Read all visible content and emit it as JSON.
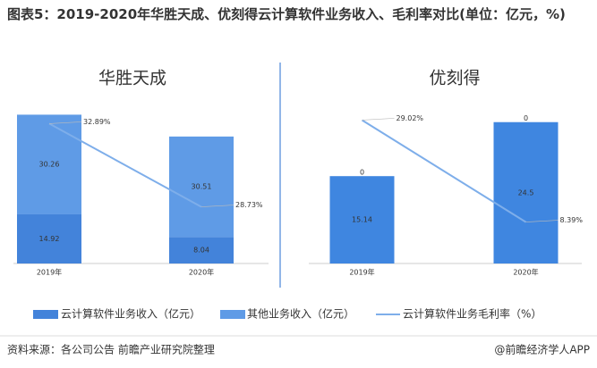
{
  "title": "图表5：2019-2020年华胜天成、优刻得云计算软件业务收入、毛利率对比(单位：亿元，%)",
  "source": "资料来源：各公司公告 前瞻产业研究院整理",
  "brand": "@前瞻经济学人APP",
  "chart_data": [
    {
      "type": "bar",
      "title": "华胜天成",
      "stacked": true,
      "categories": [
        "2019年",
        "2020年"
      ],
      "series": [
        {
          "name": "云计算软件业务收入（亿元）",
          "color": "#4383da",
          "values": [
            14.92,
            8.04
          ]
        },
        {
          "name": "其他业务收入（亿元）",
          "color": "#5f9be6",
          "values": [
            30.26,
            30.51
          ]
        },
        {
          "name": "云计算软件业务毛利率（%）",
          "color": "#7eaeea",
          "type": "line",
          "axis": "y2",
          "values": [
            32.89,
            28.73
          ],
          "value_labels": [
            "32.89%",
            "28.73%"
          ]
        }
      ],
      "ylim": [
        0,
        48
      ],
      "y2lim": [
        25.9,
        33.8
      ]
    },
    {
      "type": "bar",
      "title": "优刻得",
      "stacked": true,
      "categories": [
        "2019年",
        "2020年"
      ],
      "series": [
        {
          "color": "#3f86e0",
          "values": [
            15.14,
            24.5
          ]
        },
        {
          "color": "#5f9be6",
          "values": [
            0,
            0
          ]
        },
        {
          "color": "#7eaeea",
          "type": "line",
          "axis": "y2",
          "values": [
            29.02,
            8.39
          ],
          "value_labels": [
            "29.02%",
            "8.39%"
          ]
        }
      ],
      "ylim": [
        0,
        27.4
      ],
      "y2lim": [
        0,
        32
      ]
    }
  ]
}
